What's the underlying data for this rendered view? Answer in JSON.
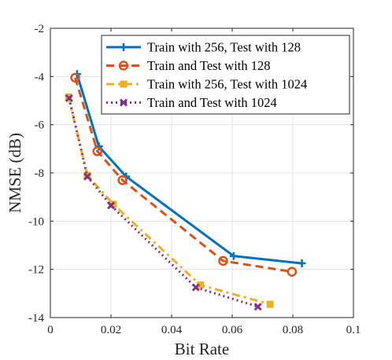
{
  "chart_data": {
    "type": "line",
    "title": "",
    "xlabel": "Bit Rate",
    "ylabel": "NMSE (dB)",
    "xlim": [
      0,
      0.1
    ],
    "ylim": [
      -14,
      -2
    ],
    "xticks": [
      0,
      0.02,
      0.04,
      0.06,
      0.08,
      0.1
    ],
    "xtick_labels": [
      "0",
      "0.02",
      "0.04",
      "0.06",
      "0.08",
      "0.1"
    ],
    "yticks": [
      -14,
      -12,
      -10,
      -8,
      -6,
      -4,
      -2
    ],
    "ytick_labels": [
      "-14",
      "-12",
      "-10",
      "-8",
      "-6",
      "-4",
      "-2"
    ],
    "grid": true,
    "legend_position": "top-right",
    "series": [
      {
        "name": "Train with 256, Test with 128",
        "color": "#0072BD",
        "line_style": "solid",
        "marker": "plus",
        "x": [
          0.0088,
          0.016,
          0.025,
          0.0605,
          0.083
        ],
        "y": [
          -3.9,
          -6.9,
          -8.15,
          -11.45,
          -11.75
        ]
      },
      {
        "name": "Train and Test with 128",
        "color": "#D95319",
        "line_style": "dashed",
        "marker": "circle",
        "x": [
          0.0082,
          0.0155,
          0.0238,
          0.057,
          0.0797
        ],
        "y": [
          -4.05,
          -7.1,
          -8.3,
          -11.65,
          -12.1
        ]
      },
      {
        "name": "Train with 256, Test with 1024",
        "color": "#EDB120",
        "line_style": "dashdot",
        "marker": "square",
        "x": [
          0.006,
          0.0122,
          0.0208,
          0.0495,
          0.0725
        ],
        "y": [
          -4.85,
          -8.1,
          -9.3,
          -12.65,
          -13.45
        ]
      },
      {
        "name": "Train and Test with 1024",
        "color": "#7E2F8E",
        "line_style": "dotted",
        "marker": "x",
        "x": [
          0.0062,
          0.0122,
          0.02,
          0.048,
          0.0685
        ],
        "y": [
          -4.9,
          -8.15,
          -9.35,
          -12.75,
          -13.55
        ]
      }
    ]
  }
}
